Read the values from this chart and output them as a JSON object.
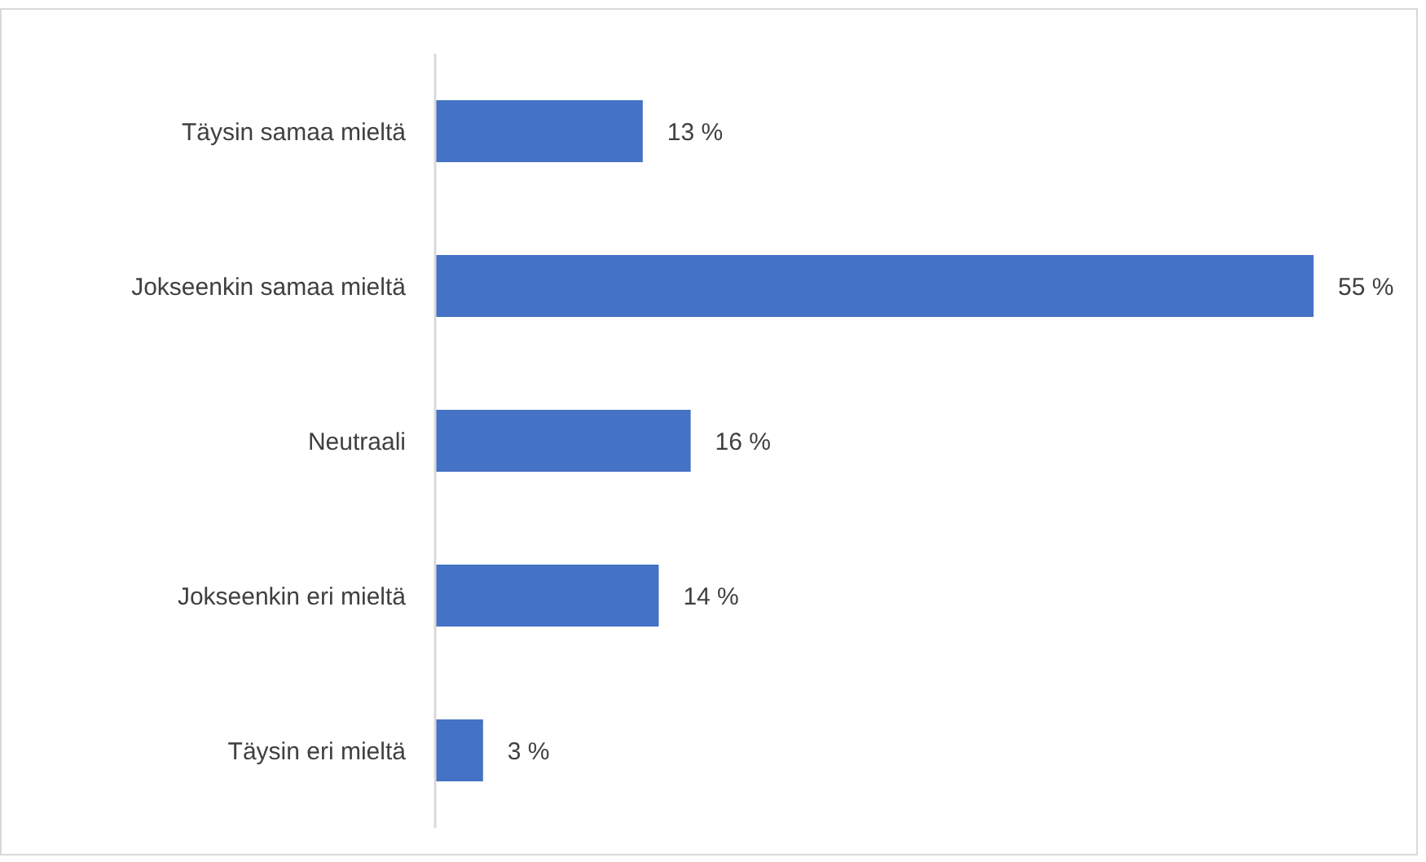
{
  "chart_data": {
    "type": "bar",
    "orientation": "horizontal",
    "categories": [
      "Täysin samaa mieltä",
      "Jokseenkin samaa mieltä",
      "Neutraali",
      "Jokseenkin eri mieltä",
      "Täysin eri mieltä"
    ],
    "values": [
      13,
      55,
      16,
      14,
      3
    ],
    "color": "#4472c4",
    "value_labels": [
      "13 %",
      "55 %",
      "16 %",
      "14 %",
      "3 %"
    ]
  }
}
